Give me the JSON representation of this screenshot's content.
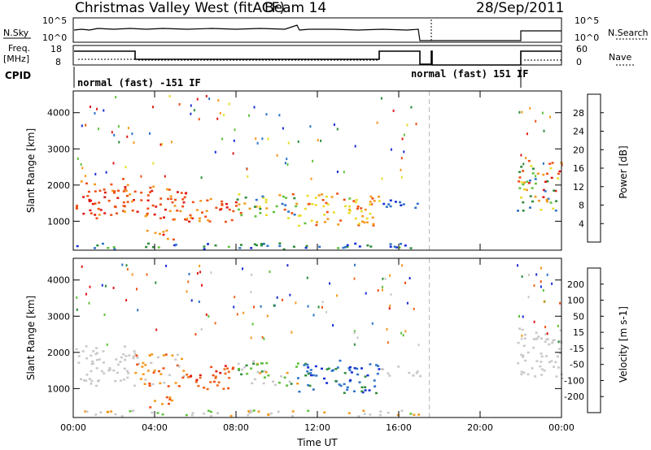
{
  "header": {
    "station": "Christmas Valley West (fitACF)",
    "beam": "Beam 14",
    "date": "28/Sep/2011"
  },
  "summary_panels": {
    "nsky_label": "N.Sky",
    "nsky_ticks": [
      "10^5",
      "10^0"
    ],
    "nsearch_label": "N.Search",
    "nsearch_ticks": [
      "10^5",
      "10^0"
    ],
    "freq_label_line1": "Freq.",
    "freq_label_line2": "[MHz]",
    "freq_ticks": [
      "18",
      "8"
    ],
    "nave_label": "Nave",
    "nave_ticks": [
      "60",
      "0"
    ],
    "cpid_label": "CPID",
    "cpid_modes": [
      "normal (fast) -151 IF",
      "normal (fast) 151 IF"
    ]
  },
  "chart_data": [
    {
      "type": "heatmap",
      "name": "Power",
      "ylabel": "Slant Range [km]",
      "xlabel": "",
      "x_ticks": [
        "00:00",
        "04:00",
        "08:00",
        "12:00",
        "16:00",
        "20:00",
        "00:00"
      ],
      "y_ticks": [
        "1000",
        "2000",
        "3000",
        "4000"
      ],
      "ylim": [
        200,
        4600
      ],
      "xlim_hours": [
        0,
        24
      ],
      "colorbar_label": "Power [dB]",
      "colorbar_ticks": [
        "4",
        "8",
        "12",
        "16",
        "20",
        "24",
        "28"
      ],
      "colorbar_colors": [
        "#1a2fd6",
        "#2f73c9",
        "#2e8c3a",
        "#5fc238",
        "#e8dc2a",
        "#f49a1e",
        "#ee5016",
        "#e01a14"
      ],
      "data_gap_hours": [
        17.0,
        21.8
      ]
    },
    {
      "type": "heatmap",
      "name": "Velocity",
      "ylabel": "Slant Range [km]",
      "xlabel": "Time UT",
      "x_ticks": [
        "00:00",
        "04:00",
        "08:00",
        "12:00",
        "16:00",
        "20:00",
        "00:00"
      ],
      "y_ticks": [
        "1000",
        "2000",
        "3000",
        "4000"
      ],
      "ylim": [
        200,
        4600
      ],
      "xlim_hours": [
        0,
        24
      ],
      "colorbar_label": "Velocity [m s-1]",
      "colorbar_ticks": [
        "200",
        "100",
        "50",
        "15",
        "-15",
        "-50",
        "-100",
        "-200"
      ],
      "colorbar_colors": [
        "#1a2fd6",
        "#2f73c9",
        "#2e8c3a",
        "#5fc238",
        "#c8c8c8",
        "#f49a1e",
        "#ee5016",
        "#f06a1a",
        "#e01a14"
      ],
      "data_gap_hours": [
        17.0,
        21.8
      ]
    }
  ]
}
